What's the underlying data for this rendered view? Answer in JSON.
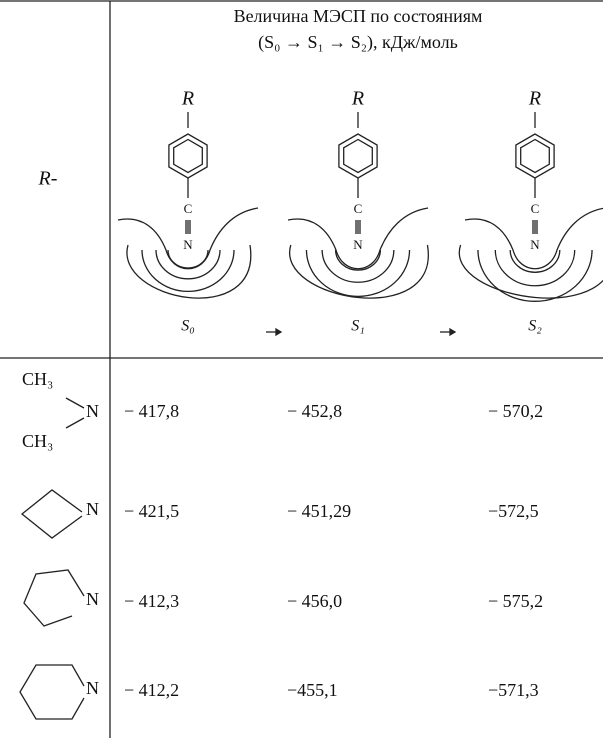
{
  "header": {
    "row_label": "R-",
    "title": "Величина МЭСП по состояниям",
    "subtitle": "(S₀ → S₁ → S₂), кДж/моль"
  },
  "diagrams": [
    {
      "substituent": "R",
      "carbon": "C",
      "nitrogen": "N",
      "state": "S₀"
    },
    {
      "substituent": "R",
      "carbon": "C",
      "nitrogen": "N",
      "state": "S₁"
    },
    {
      "substituent": "R",
      "carbon": "C",
      "nitrogen": "N",
      "state": "S₂"
    }
  ],
  "rows": [
    {
      "group_labels": [
        "CH₃",
        "N",
        "CH₃"
      ],
      "values": [
        "− 417,8",
        "− 452,8",
        "− 570,2"
      ]
    },
    {
      "group_labels": [
        "N"
      ],
      "values": [
        "− 421,5",
        "− 451,29",
        "−572,5"
      ]
    },
    {
      "group_labels": [
        "N"
      ],
      "values": [
        "− 412,3",
        "− 456,0",
        "− 575,2"
      ]
    },
    {
      "group_labels": [
        "N"
      ],
      "values": [
        "− 412,2",
        "−455,1",
        "−571,3"
      ]
    }
  ]
}
